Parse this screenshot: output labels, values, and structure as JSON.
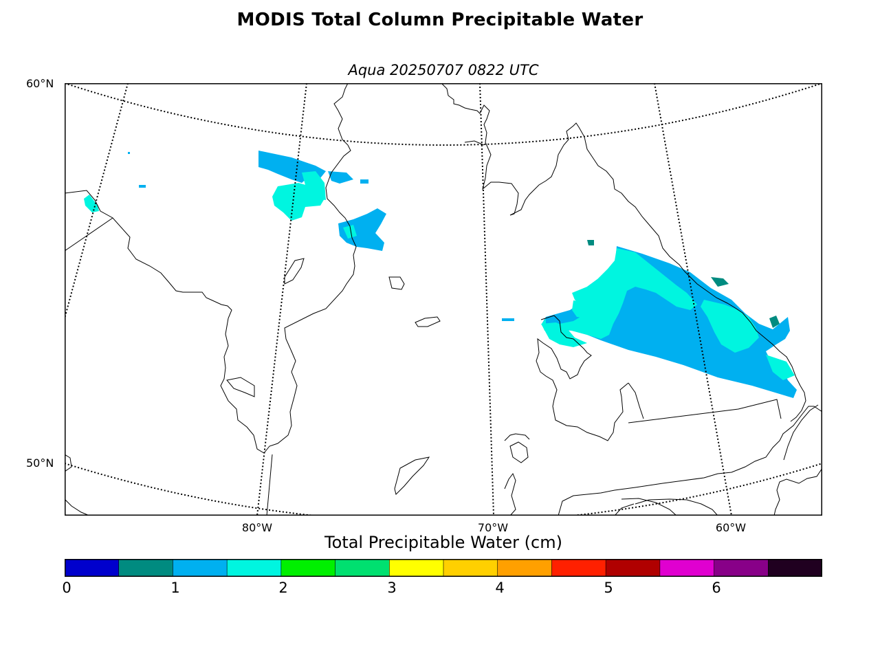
{
  "title": "MODIS Total Column Precipitable Water",
  "subtitle": "Aqua 20250707 0822 UTC",
  "lat_labels": [
    "60°N",
    "50°N"
  ],
  "lon_labels": [
    "80°W",
    "70°W",
    "60°W"
  ],
  "colorbar": {
    "label": "Total Precipitable Water (cm)",
    "ticks": [
      "0",
      "1",
      "2",
      "3",
      "4",
      "5",
      "6"
    ],
    "colors": [
      "#0000cd",
      "#008b80",
      "#00b0f0",
      "#00f5e0",
      "#00f000",
      "#00e070",
      "#ffff00",
      "#ffd000",
      "#ffa000",
      "#ff2000",
      "#b00000",
      "#e000d0",
      "#880088",
      "#200020"
    ]
  },
  "data_colors": {
    "cyan": "#00f5e0",
    "blue": "#00b0f0",
    "teal": "#008b80"
  }
}
